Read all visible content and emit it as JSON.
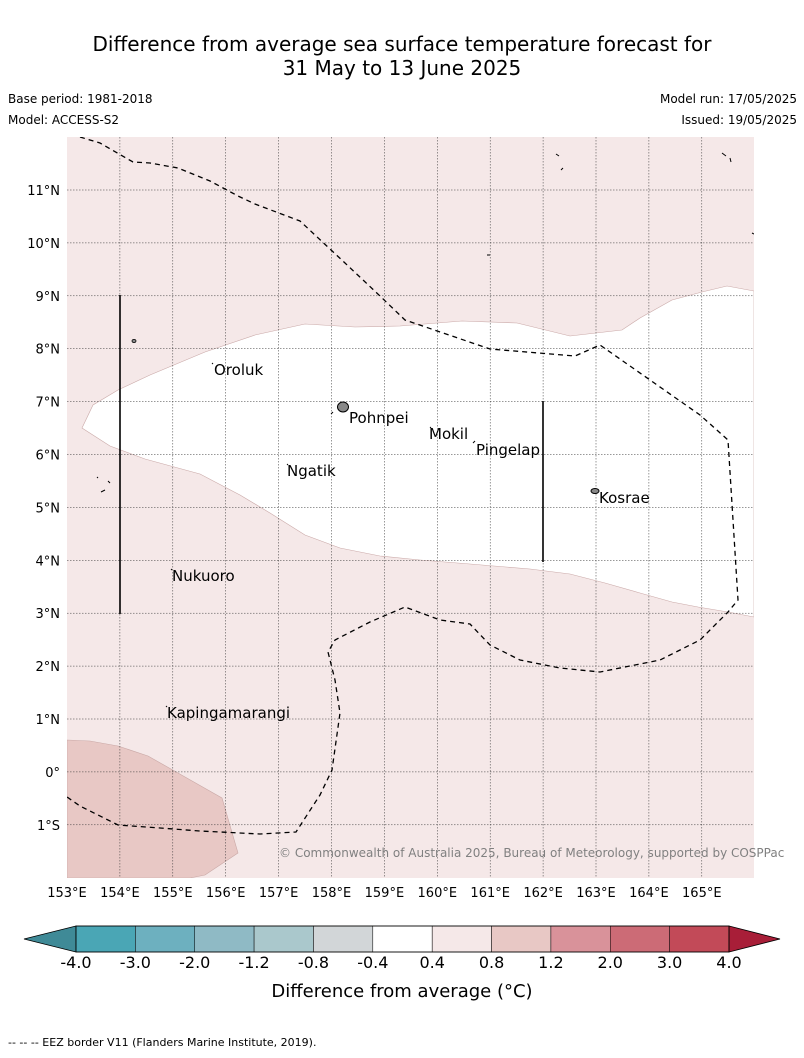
{
  "title": {
    "line1": "Difference from average sea surface temperature forecast for",
    "line2": "31 May to 13 June 2025"
  },
  "meta": {
    "base_period": "Base period: 1981-2018",
    "model": "Model: ACCESS-S2",
    "model_run": "Model run: 17/05/2025",
    "issued": "Issued: 19/05/2025"
  },
  "map": {
    "lon_labels": [
      "153°E",
      "154°E",
      "155°E",
      "156°E",
      "157°E",
      "158°E",
      "159°E",
      "160°E",
      "161°E",
      "162°E",
      "163°E",
      "164°E",
      "165°E"
    ],
    "lat_labels": [
      "11°N",
      "10°N",
      "9°N",
      "8°N",
      "7°N",
      "6°N",
      "5°N",
      "4°N",
      "3°N",
      "2°N",
      "1°N",
      "0°",
      "1°S"
    ],
    "places": [
      {
        "name": "Oroluk"
      },
      {
        "name": "Pohnpei"
      },
      {
        "name": "Mokil"
      },
      {
        "name": "Pingelap"
      },
      {
        "name": "Ngatik"
      },
      {
        "name": "Kosrae"
      },
      {
        "name": "Nukuoro"
      },
      {
        "name": "Kapingamarangi"
      }
    ],
    "copyright": "© Commonwealth of Australia 2025, Bureau of Meteorology, supported by COSPPac",
    "colors": {
      "band_near_zero": "#ffffff",
      "band_0_4_0_8": "#f5e8e8",
      "band_0_8_1_2": "#e8c8c5"
    }
  },
  "colorbar": {
    "ticks": [
      "-4.0",
      "-3.0",
      "-2.0",
      "-1.2",
      "-0.8",
      "-0.4",
      "0.4",
      "0.8",
      "1.2",
      "2.0",
      "3.0",
      "4.0"
    ],
    "colors": [
      "#3f8a97",
      "#4aa6b5",
      "#6db0bf",
      "#8fbac5",
      "#aac8cc",
      "#d2d6d8",
      "#ffffff",
      "#f5e8e8",
      "#e8c8c5",
      "#d9929a",
      "#cc6b76",
      "#c24a58",
      "#a81e38"
    ],
    "title": "Difference from average (°C)"
  },
  "footnote": "--  --  -- EEZ border V11 (Flanders Marine Institute, 2019)."
}
